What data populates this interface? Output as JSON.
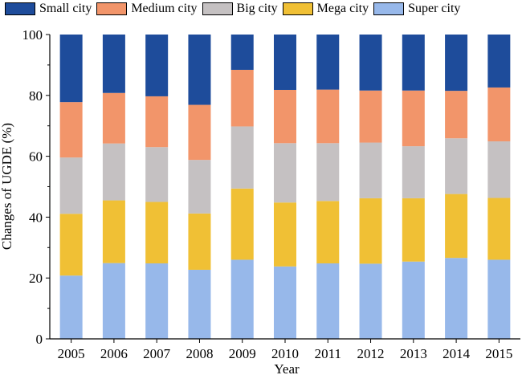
{
  "chart_data": {
    "type": "bar",
    "stacked": true,
    "xlabel": "Year",
    "ylabel": "Changes of UGDE (%)",
    "ylim": [
      0,
      100
    ],
    "yticks": [
      "0",
      "20",
      "40",
      "60",
      "80",
      "100"
    ],
    "categories": [
      "2005",
      "2006",
      "2007",
      "2008",
      "2009",
      "2010",
      "2011",
      "2012",
      "2013",
      "2014",
      "2015"
    ],
    "legend_position": "top",
    "series": [
      {
        "name": "Super city",
        "color": "#97B8EA",
        "values": [
          20.8,
          24.9,
          24.8,
          22.7,
          26.0,
          23.8,
          24.8,
          24.7,
          25.4,
          26.6,
          26.0
        ]
      },
      {
        "name": "Mega city",
        "color": "#F0C035",
        "values": [
          20.3,
          20.6,
          20.2,
          18.5,
          23.4,
          21.0,
          20.5,
          21.5,
          20.8,
          21.0,
          20.3
        ]
      },
      {
        "name": "Big city",
        "color": "#C5C1C2",
        "values": [
          18.5,
          18.7,
          18.0,
          17.6,
          20.4,
          19.5,
          19.0,
          18.3,
          17.1,
          18.3,
          18.6
        ]
      },
      {
        "name": "Medium city",
        "color": "#F2956A",
        "values": [
          18.2,
          16.6,
          16.7,
          18.1,
          18.6,
          17.5,
          17.6,
          17.1,
          18.3,
          15.6,
          17.7
        ]
      },
      {
        "name": "Small city",
        "color": "#1E4C9B",
        "values": [
          22.2,
          19.2,
          20.3,
          23.1,
          11.6,
          18.2,
          18.1,
          18.4,
          18.4,
          18.5,
          17.4
        ]
      }
    ],
    "legend_order": [
      "Small city",
      "Medium city",
      "Big city",
      "Mega city",
      "Super city"
    ]
  }
}
